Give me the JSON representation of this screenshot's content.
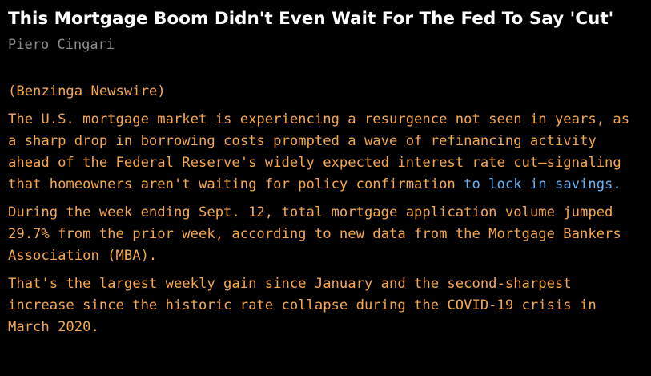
{
  "article": {
    "headline": "This Mortgage Boom Didn't Even Wait For The Fed To Say 'Cut'",
    "author": "Piero Cingari",
    "source": "(Benzinga Newswire)",
    "paragraphs": [
      {
        "text": "The U.S. mortgage market is experiencing a resurgence not seen in years, as a sharp drop in borrowing costs prompted a wave of refinancing activity ahead of the Federal Reserve's widely expected interest rate cut—signaling that homeowners aren't waiting for policy confirmation ",
        "link": "to lock in savings."
      },
      {
        "text": "During the week ending Sept. 12, total mortgage application volume jumped 29.7% from the prior week, according to new data from the Mortgage Bankers Association (MBA)."
      },
      {
        "text": "That's the largest weekly gain since January and the second-sharpest increase since the historic rate collapse during the COVID-19 crisis in March 2020."
      }
    ]
  },
  "colors": {
    "background": "#000000",
    "headline": "#ffffff",
    "byline": "#8c8c8c",
    "body": "#f5a84f",
    "link": "#6ab4f5"
  }
}
